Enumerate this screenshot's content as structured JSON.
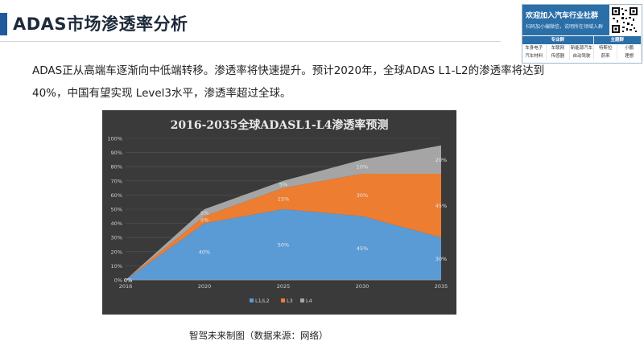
{
  "page": {
    "title": "ADAS市场渗透率分析",
    "intro": "ADAS正从高端车逐渐向中低端转移。渗透率将快速提升。预计2020年，全球ADAS L1-L2的渗透率将达到 40%，中国有望实现 Level3水平，渗透率超过全球。",
    "caption": "智驾未来制图（数据来源：网络）"
  },
  "promo": {
    "title": "欢迎加入汽车行业社群",
    "subtitle": "扫码加小编微信，说明所在领域入群",
    "header_left": "专业群",
    "header_right": "主题群",
    "rows": [
      [
        "车身电子",
        "车联网",
        "新能源汽车",
        "特斯拉",
        "小鹏"
      ],
      [
        "汽车材料",
        "传感器",
        "自动驾驶",
        "蔚来",
        "理想"
      ]
    ]
  },
  "colors": {
    "accent": "#1f5a9c",
    "promo_blue": "#2b6fa8",
    "chart_bg": "#3a3a3a",
    "l1l2": "#5b9bd5",
    "l3": "#ed7d31",
    "l4": "#a5a5a5"
  },
  "chart_data": {
    "type": "area",
    "stacked": true,
    "title": "2016-2035全球ADASL1-L4渗透率预测",
    "x": [
      "2016",
      "2020",
      "2025",
      "2030",
      "2035"
    ],
    "y_ticks": [
      "0%",
      "10%",
      "20%",
      "30%",
      "40%",
      "50%",
      "60%",
      "70%",
      "80%",
      "90%",
      "100%"
    ],
    "ylim": [
      0,
      100
    ],
    "grid": true,
    "legend_position": "bottom",
    "series": [
      {
        "name": "L1/L2",
        "color": "#5b9bd5",
        "values": [
          0,
          40,
          50,
          45,
          30
        ],
        "labels": [
          "0%",
          "40%",
          "50%",
          "45%",
          "30%"
        ]
      },
      {
        "name": "L3",
        "color": "#ed7d31",
        "values": [
          0,
          5,
          15,
          30,
          45
        ],
        "labels": [
          "0%",
          "5%",
          "15%",
          "30%",
          "45%"
        ]
      },
      {
        "name": "L4",
        "color": "#a5a5a5",
        "values": [
          0,
          5,
          5,
          10,
          20
        ],
        "labels": [
          "0%",
          "5%",
          "5%",
          "10%",
          "20%"
        ]
      }
    ]
  }
}
